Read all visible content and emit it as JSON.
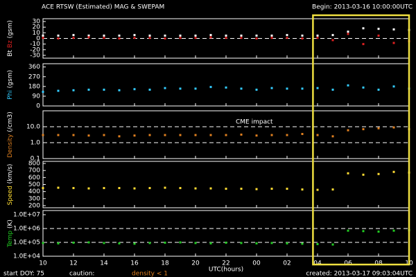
{
  "title": "ACE RTSW (Estimated) MAG & SWEPAM",
  "begin": "Begin: 2013-03-16 10:00:00UTC",
  "annotation": "CME impact",
  "highlight_x": [
    17.7,
    24
  ],
  "footer": {
    "start": "start DOY:  75",
    "caution": "caution:",
    "density_note": "density < 1",
    "created": "created: 2013-03-17 09:03:04UTC"
  },
  "chart_data": [
    {
      "type": "scatter",
      "ylabel": "(gsm)",
      "ylim": [
        -35,
        35
      ],
      "yticks": [
        30,
        20,
        10,
        0,
        -10,
        -20,
        -30
      ],
      "reference_lines": [
        0
      ],
      "x": [
        0,
        1,
        2,
        3,
        4,
        5,
        6,
        7,
        8,
        9,
        10,
        11,
        12,
        13,
        14,
        15,
        16,
        17,
        18,
        19,
        20,
        21,
        22,
        23,
        24
      ],
      "series": [
        {
          "name": "Bt",
          "color": "#ffffff",
          "values": [
            5,
            5,
            6,
            5,
            5,
            5,
            6,
            5,
            5,
            5,
            5,
            6,
            5,
            5,
            5,
            5,
            6,
            5,
            5,
            6,
            12,
            18,
            17,
            16,
            15
          ]
        },
        {
          "name": "Bz",
          "color": "#e02020",
          "values": [
            1,
            0,
            1,
            2,
            1,
            0,
            1,
            1,
            0,
            1,
            1,
            2,
            1,
            1,
            0,
            1,
            1,
            0,
            1,
            -3,
            8,
            -10,
            5,
            -8,
            -5
          ]
        }
      ]
    },
    {
      "type": "scatter",
      "ylabel": "(gsm)",
      "ylim": [
        0,
        390
      ],
      "yticks": [
        360,
        270,
        180,
        90,
        0
      ],
      "x": [
        0,
        1,
        2,
        3,
        4,
        5,
        6,
        7,
        8,
        9,
        10,
        11,
        12,
        13,
        14,
        15,
        16,
        17,
        18,
        19,
        20,
        21,
        22,
        23,
        24
      ],
      "series": [
        {
          "name": "Phi",
          "color": "#33ccff",
          "values": [
            130,
            140,
            145,
            150,
            150,
            145,
            155,
            150,
            165,
            160,
            160,
            175,
            170,
            160,
            150,
            165,
            160,
            160,
            165,
            150,
            190,
            170,
            150,
            180,
            160
          ]
        }
      ]
    },
    {
      "type": "scatter",
      "ylabel": "(/cm3)",
      "log": true,
      "ylim": [
        0.1,
        100
      ],
      "yticks": [
        {
          "value": 10,
          "label": "10.0"
        },
        {
          "value": 1,
          "label": "1.0"
        },
        0.1
      ],
      "reference_lines": [
        10,
        1
      ],
      "x": [
        0,
        1,
        2,
        3,
        4,
        5,
        6,
        7,
        8,
        9,
        10,
        11,
        12,
        13,
        14,
        15,
        16,
        17,
        18,
        19,
        20,
        21,
        22,
        23,
        24
      ],
      "series": [
        {
          "name": "Density",
          "color": "#e08020",
          "values": [
            3,
            3,
            3,
            2.8,
            3,
            2.5,
            2.8,
            3,
            3,
            3,
            3,
            3,
            3,
            3.2,
            2.8,
            3,
            3,
            3.5,
            3,
            2.5,
            6,
            7,
            8,
            9,
            7
          ]
        }
      ]
    },
    {
      "type": "scatter",
      "ylabel": "(km/s)",
      "ylim": [
        170,
        830
      ],
      "yticks": [
        800,
        700,
        600,
        500,
        400,
        300,
        200
      ],
      "x": [
        0,
        1,
        2,
        3,
        4,
        5,
        6,
        7,
        8,
        9,
        10,
        11,
        12,
        13,
        14,
        15,
        16,
        17,
        18,
        19,
        20,
        21,
        22,
        23,
        24
      ],
      "series": [
        {
          "name": "Speed",
          "color": "#ffdd33",
          "values": [
            450,
            455,
            450,
            445,
            450,
            450,
            445,
            450,
            455,
            450,
            445,
            445,
            440,
            440,
            435,
            440,
            440,
            430,
            425,
            430,
            660,
            640,
            650,
            680,
            670
          ]
        }
      ]
    },
    {
      "type": "scatter",
      "ylabel": "(K)",
      "log": true,
      "ylim": [
        10000,
        20000000
      ],
      "yticks": [
        {
          "value": 10000000,
          "label": "1.0E+07"
        },
        {
          "value": 1000000,
          "label": "1.0E+06"
        },
        {
          "value": 100000,
          "label": "1.0E+05"
        },
        {
          "value": 10000,
          "label": "1.0E+04"
        }
      ],
      "reference_lines": [
        1000000,
        100000
      ],
      "xlabel": "UTC(hours)",
      "xlim": [
        0,
        24
      ],
      "xticks": [
        {
          "value": 0,
          "label": "10"
        },
        {
          "value": 2,
          "label": "12"
        },
        {
          "value": 4,
          "label": "14"
        },
        {
          "value": 6,
          "label": "16"
        },
        {
          "value": 8,
          "label": "18"
        },
        {
          "value": 10,
          "label": "20"
        },
        {
          "value": 12,
          "label": "22"
        },
        {
          "value": 14,
          "label": "00"
        },
        {
          "value": 16,
          "label": "02"
        },
        {
          "value": 18,
          "label": "04"
        },
        {
          "value": 20,
          "label": "06"
        },
        {
          "value": 22,
          "label": "08"
        },
        {
          "value": 24,
          "label": "10"
        }
      ],
      "x": [
        0,
        1,
        2,
        3,
        4,
        5,
        6,
        7,
        8,
        9,
        10,
        11,
        12,
        13,
        14,
        15,
        16,
        17,
        18,
        19,
        20,
        21,
        22,
        23,
        24
      ],
      "series": [
        {
          "name": "Temp",
          "color": "#22cc22",
          "values": [
            90000,
            85000,
            95000,
            100000,
            90000,
            85000,
            80000,
            90000,
            95000,
            100000,
            90000,
            85000,
            95000,
            90000,
            85000,
            90000,
            85000,
            80000,
            75000,
            70000,
            700000,
            650000,
            600000,
            700000,
            750000
          ]
        }
      ]
    }
  ]
}
